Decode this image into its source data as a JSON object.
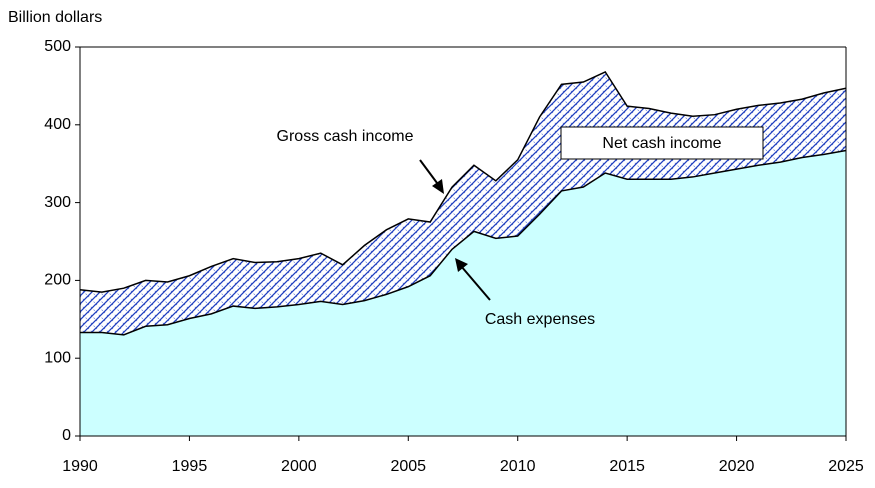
{
  "chart_data": {
    "type": "area",
    "ylabel": "Billion dollars",
    "annotations": [
      "Net cash income"
    ],
    "x": [
      1990,
      1991,
      1992,
      1993,
      1994,
      1995,
      1996,
      1997,
      1998,
      1999,
      2000,
      2001,
      2002,
      2003,
      2004,
      2005,
      2006,
      2007,
      2008,
      2009,
      2010,
      2011,
      2012,
      2013,
      2014,
      2015,
      2016,
      2017,
      2018,
      2019,
      2020,
      2021,
      2022,
      2023,
      2024,
      2025
    ],
    "series": [
      {
        "name": "Gross cash income",
        "color": "#1f3fbf",
        "values": [
          188,
          185,
          190,
          200,
          198,
          206,
          218,
          228,
          223,
          224,
          228,
          235,
          220,
          245,
          265,
          279,
          275,
          320,
          348,
          328,
          355,
          410,
          452,
          455,
          468,
          424,
          421,
          415,
          411,
          413,
          420,
          425,
          428,
          433,
          441,
          447
        ]
      },
      {
        "name": "Cash expenses",
        "color": "#ccffff",
        "values": [
          133,
          133,
          130,
          141,
          143,
          151,
          157,
          167,
          164,
          166,
          169,
          173,
          169,
          174,
          182,
          192,
          206,
          240,
          263,
          254,
          257,
          285,
          315,
          320,
          338,
          330,
          330,
          330,
          333,
          338,
          343,
          348,
          352,
          358,
          362,
          367
        ]
      }
    ],
    "xlim": [
      1990,
      2025
    ],
    "xticks": [
      1990,
      1995,
      2000,
      2005,
      2010,
      2015,
      2020,
      2025
    ],
    "ylim": [
      0,
      500
    ],
    "yticks": [
      0,
      100,
      200,
      300,
      400,
      500
    ]
  }
}
